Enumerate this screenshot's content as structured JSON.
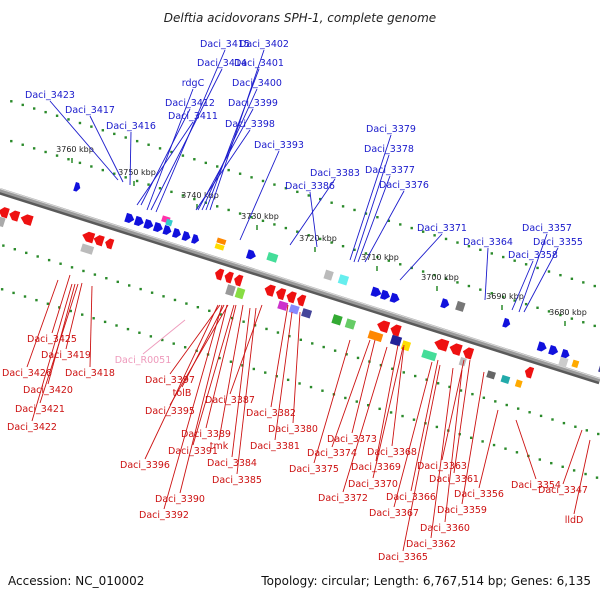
{
  "title": "Delftia acidovorans SPH-1, complete genome",
  "footer": {
    "accession": "Accession: NC_010002",
    "summary": "Topology: circular; Length: 6,767,514 bp; Genes: 6,135"
  },
  "colors": {
    "top_label": "#1a1acc",
    "bottom_label": "#cc1111",
    "rna_label": "#ee99bb"
  },
  "ticks": [
    {
      "label": "3760 kbp"
    },
    {
      "label": "3750 kbp"
    },
    {
      "label": "3740 kbp"
    },
    {
      "label": "3730 kbp"
    },
    {
      "label": "3720 kbp"
    },
    {
      "label": "3710 kbp"
    },
    {
      "label": "3700 kbp"
    },
    {
      "label": "3690 kbp"
    },
    {
      "label": "3680 kbp"
    }
  ],
  "top_labels": [
    {
      "text": "Daci_3415"
    },
    {
      "text": "Daci_3402"
    },
    {
      "text": "Daci_3414"
    },
    {
      "text": "Daci_3401"
    },
    {
      "text": "rdgC"
    },
    {
      "text": "Daci_3400"
    },
    {
      "text": "Daci_3423"
    },
    {
      "text": "Daci_3412"
    },
    {
      "text": "Daci_3399"
    },
    {
      "text": "Daci_3417"
    },
    {
      "text": "Daci_3411"
    },
    {
      "text": "Daci_3416"
    },
    {
      "text": "Daci_3398"
    },
    {
      "text": "Daci_3379"
    },
    {
      "text": "Daci_3393"
    },
    {
      "text": "Daci_3378"
    },
    {
      "text": "Daci_3383"
    },
    {
      "text": "Daci_3377"
    },
    {
      "text": "Daci_3386"
    },
    {
      "text": "Daci_3376"
    },
    {
      "text": "Daci_3371"
    },
    {
      "text": "Daci_3357"
    },
    {
      "text": "Daci_3364"
    },
    {
      "text": "Daci_3355"
    },
    {
      "text": "Daci_3358"
    }
  ],
  "bottom_labels": [
    {
      "text": "Daci_R0051"
    },
    {
      "text": "Daci_3425"
    },
    {
      "text": "Daci_3419"
    },
    {
      "text": "Daci_3426"
    },
    {
      "text": "Daci_3418"
    },
    {
      "text": "Daci_3420"
    },
    {
      "text": "Daci_3397"
    },
    {
      "text": "tolB"
    },
    {
      "text": "Daci_3421"
    },
    {
      "text": "Daci_3395"
    },
    {
      "text": "Daci_3387"
    },
    {
      "text": "Daci_3422"
    },
    {
      "text": "Daci_3382"
    },
    {
      "text": "Daci_3380"
    },
    {
      "text": "Daci_3389"
    },
    {
      "text": "tmk"
    },
    {
      "text": "Daci_3373"
    },
    {
      "text": "Daci_3391"
    },
    {
      "text": "Daci_3381"
    },
    {
      "text": "Daci_3374"
    },
    {
      "text": "Daci_3368"
    },
    {
      "text": "Daci_3396"
    },
    {
      "text": "Daci_3384"
    },
    {
      "text": "Daci_3375"
    },
    {
      "text": "Daci_3369"
    },
    {
      "text": "Daci_3363"
    },
    {
      "text": "Daci_3385"
    },
    {
      "text": "Daci_3361"
    },
    {
      "text": "Daci_3354"
    },
    {
      "text": "Daci_3370"
    },
    {
      "text": "Daci_3347"
    },
    {
      "text": "Daci_3390"
    },
    {
      "text": "Daci_3372"
    },
    {
      "text": "Daci_3366"
    },
    {
      "text": "Daci_3356"
    },
    {
      "text": "Daci_3392"
    },
    {
      "text": "Daci_3367"
    },
    {
      "text": "Daci_3359"
    },
    {
      "text": "lldD"
    },
    {
      "text": "Daci_3360"
    },
    {
      "text": "Daci_3362"
    },
    {
      "text": "Daci_3365"
    }
  ]
}
